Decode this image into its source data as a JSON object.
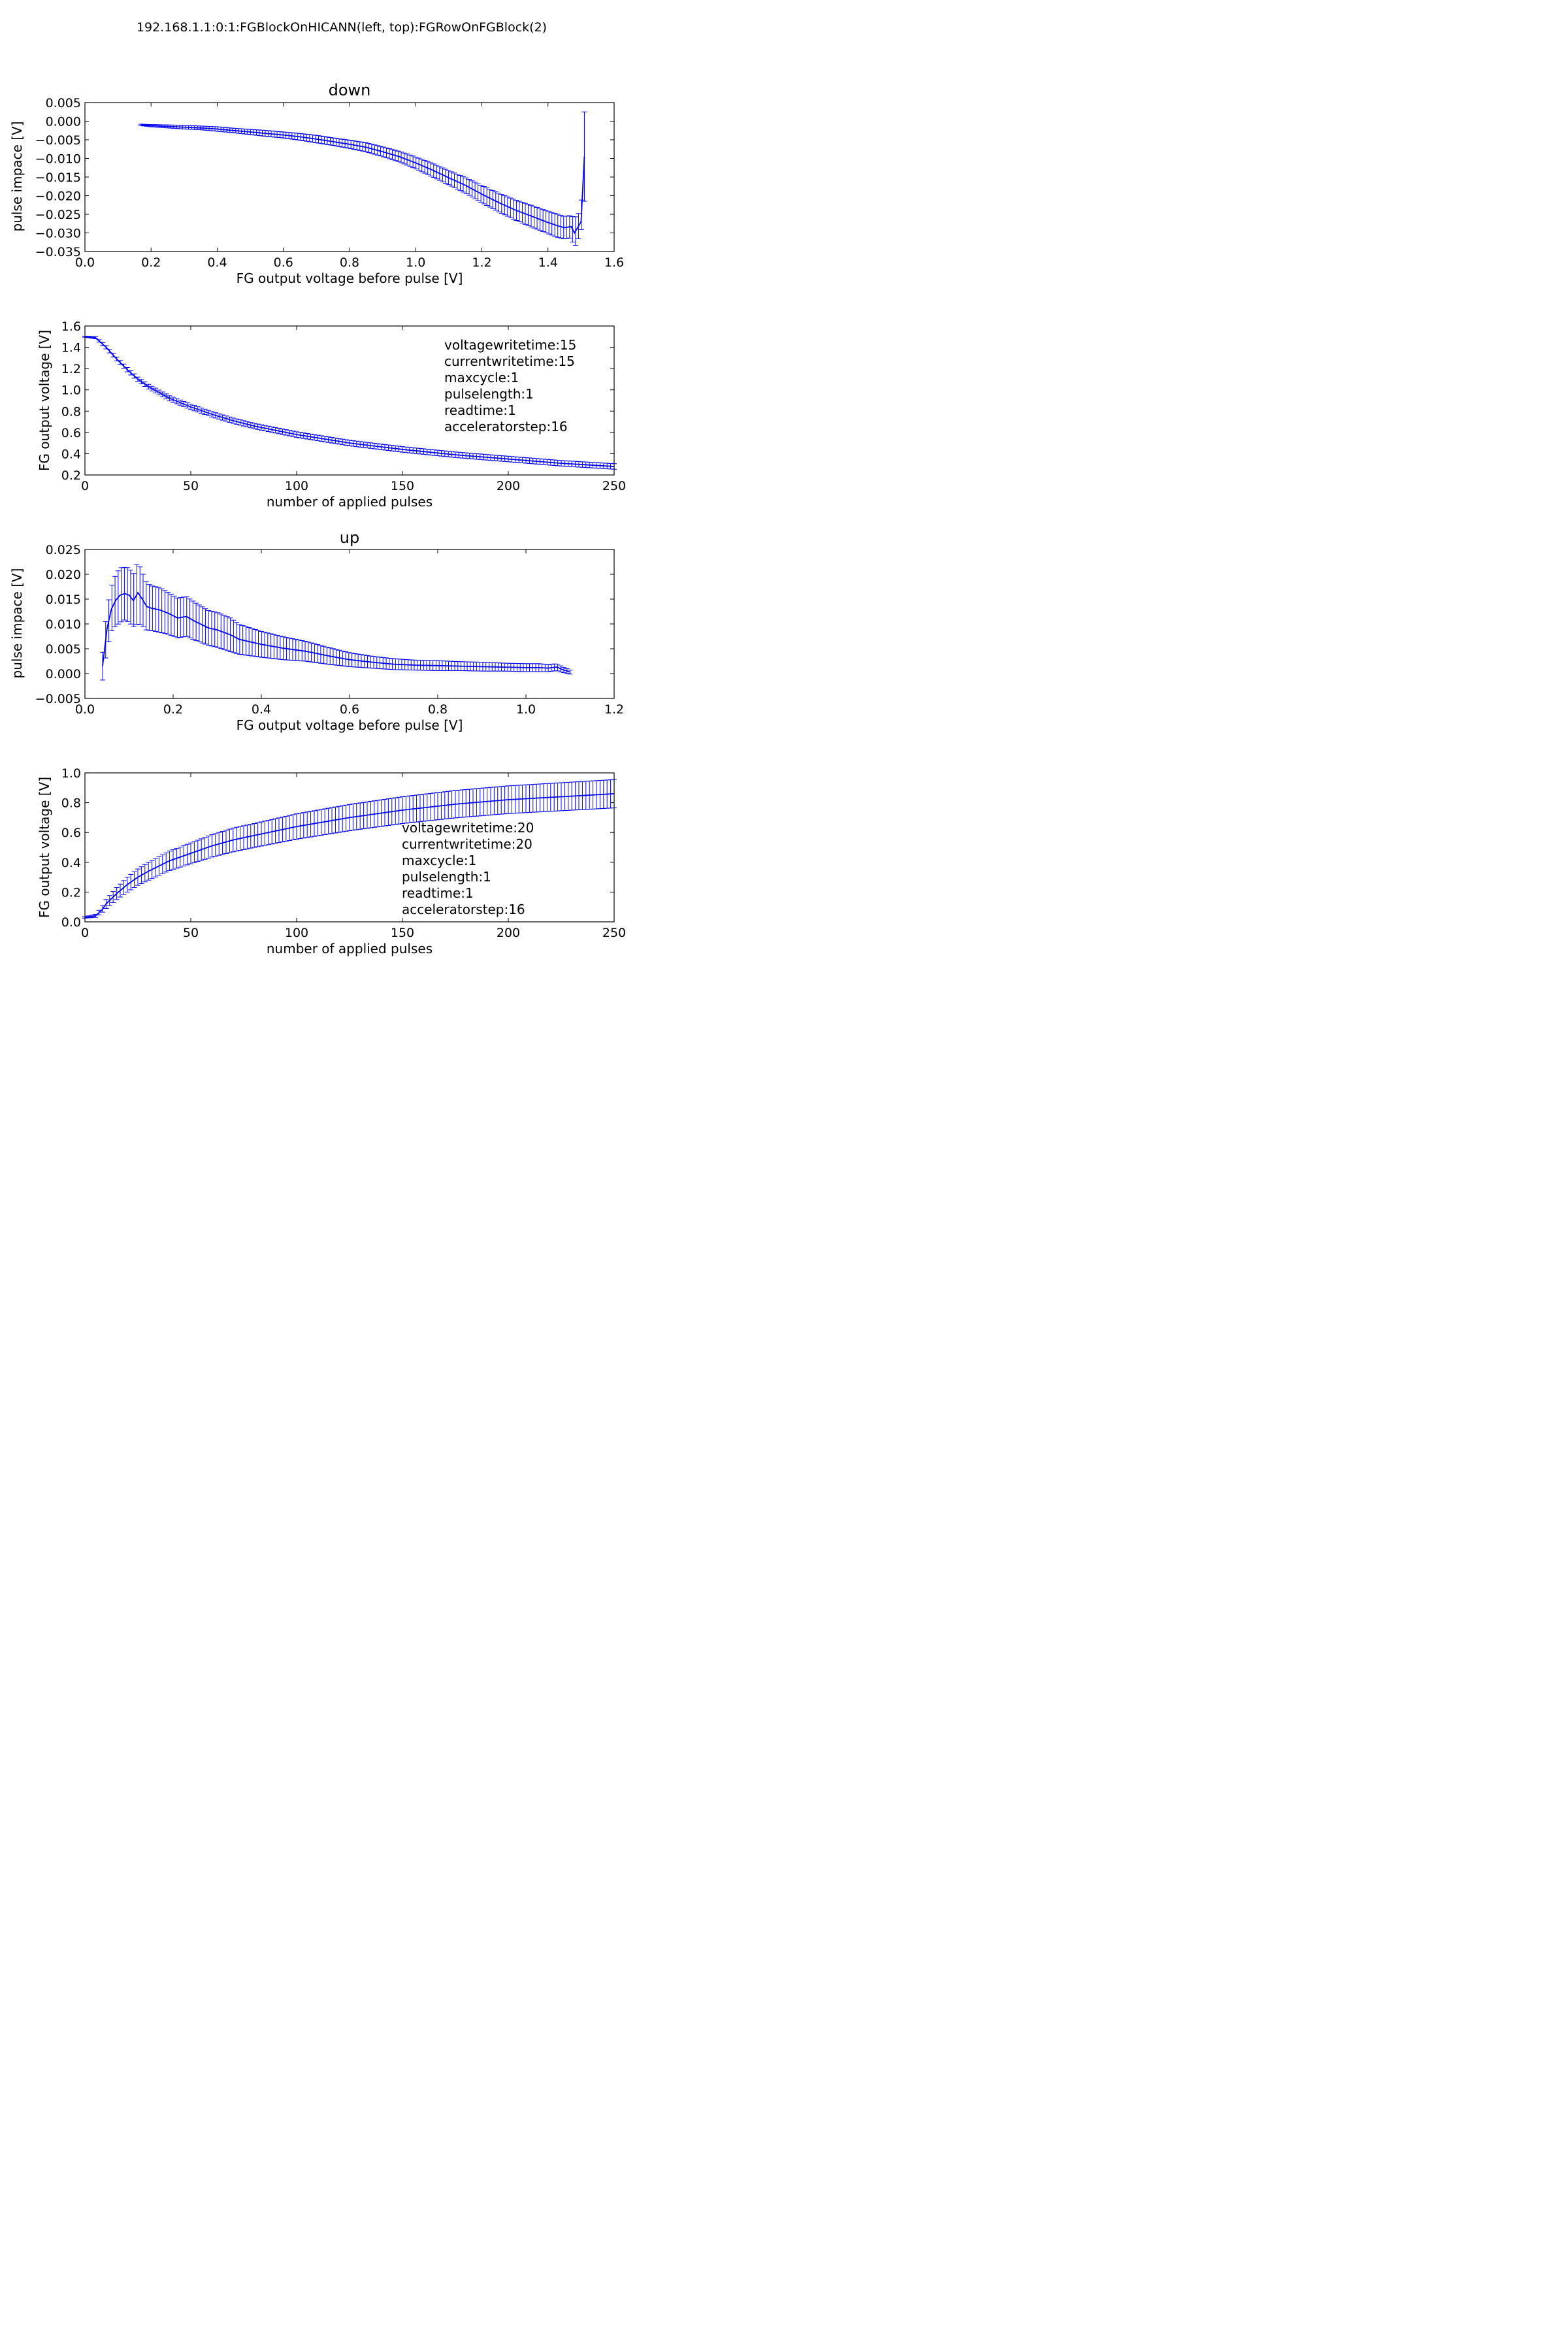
{
  "suptitle": "192.168.1.1:0:1:FGBlockOnHICANN(left, top):FGRowOnFGBlock(2)",
  "colors": {
    "series": "#0000ff",
    "axes": "#000000",
    "background": "#ffffff"
  },
  "chart_data": [
    {
      "id": "down_impact",
      "type": "line",
      "title": "down",
      "xlabel": "FG output voltage before pulse [V]",
      "ylabel": "pulse impace [V]",
      "xlim": [
        0.0,
        1.6
      ],
      "ylim": [
        -0.035,
        0.005
      ],
      "xticks": [
        "0.0",
        "0.2",
        "0.4",
        "0.6",
        "0.8",
        "1.0",
        "1.2",
        "1.4",
        "1.6"
      ],
      "yticks": [
        "0.005",
        "0.000",
        "−0.005",
        "−0.010",
        "−0.015",
        "−0.020",
        "−0.025",
        "−0.030",
        "−0.035"
      ],
      "error_bars": true,
      "series": [
        {
          "x": [
            0.17,
            0.2,
            0.25,
            0.3,
            0.35,
            0.4,
            0.45,
            0.5,
            0.55,
            0.6,
            0.65,
            0.7,
            0.75,
            0.8,
            0.85,
            0.9,
            0.95,
            1.0,
            1.05,
            1.1,
            1.15,
            1.2,
            1.25,
            1.3,
            1.35,
            1.4,
            1.43,
            1.45,
            1.47,
            1.48,
            1.5,
            1.51
          ],
          "y": [
            -0.001,
            -0.0012,
            -0.0014,
            -0.0016,
            -0.0018,
            -0.0021,
            -0.0025,
            -0.0029,
            -0.0033,
            -0.0037,
            -0.0042,
            -0.0048,
            -0.0055,
            -0.0062,
            -0.007,
            -0.0082,
            -0.0095,
            -0.0112,
            -0.0131,
            -0.0152,
            -0.0172,
            -0.0196,
            -0.0218,
            -0.0238,
            -0.0255,
            -0.0272,
            -0.0281,
            -0.0286,
            -0.0283,
            -0.03,
            -0.027,
            -0.0095
          ],
          "err": [
            0.0002,
            0.0003,
            0.0004,
            0.0005,
            0.0005,
            0.0006,
            0.0006,
            0.0007,
            0.0008,
            0.0008,
            0.0009,
            0.001,
            0.001,
            0.0011,
            0.0012,
            0.0013,
            0.0014,
            0.0016,
            0.0018,
            0.0019,
            0.0021,
            0.0023,
            0.0025,
            0.0027,
            0.0029,
            0.003,
            0.0031,
            0.003,
            0.003,
            0.004,
            0.003,
            0.012
          ]
        }
      ]
    },
    {
      "id": "down_trace",
      "type": "line",
      "title": "",
      "xlabel": "number of applied pulses",
      "ylabel": "FG output voltage [V]",
      "xlim": [
        0,
        250
      ],
      "ylim": [
        0.2,
        1.6
      ],
      "xticks": [
        "0",
        "50",
        "100",
        "150",
        "200",
        "250"
      ],
      "yticks": [
        "1.6",
        "1.4",
        "1.2",
        "1.0",
        "0.8",
        "0.6",
        "0.4",
        "0.2"
      ],
      "error_bars": true,
      "annotation": [
        "voltagewritetime:15",
        "currentwritetime:15",
        "maxcycle:1",
        "pulselength:1",
        "readtime:1",
        "acceleratorstep:16"
      ],
      "series": [
        {
          "x": [
            0,
            5,
            10,
            15,
            20,
            25,
            30,
            40,
            50,
            60,
            70,
            80,
            100,
            125,
            150,
            175,
            200,
            225,
            250
          ],
          "y": [
            1.5,
            1.49,
            1.4,
            1.29,
            1.19,
            1.1,
            1.03,
            0.92,
            0.84,
            0.77,
            0.71,
            0.66,
            0.58,
            0.5,
            0.44,
            0.39,
            0.35,
            0.31,
            0.28
          ],
          "err": [
            0.005,
            0.01,
            0.015,
            0.018,
            0.02,
            0.02,
            0.022,
            0.024,
            0.025,
            0.025,
            0.025,
            0.025,
            0.026,
            0.026,
            0.026,
            0.026,
            0.026,
            0.026,
            0.026
          ]
        }
      ]
    },
    {
      "id": "up_impact",
      "type": "line",
      "title": "up",
      "xlabel": "FG output voltage before pulse [V]",
      "ylabel": "pulse impace [V]",
      "xlim": [
        0.0,
        1.2
      ],
      "ylim": [
        -0.005,
        0.025
      ],
      "xticks": [
        "0.0",
        "0.2",
        "0.4",
        "0.6",
        "0.8",
        "1.0",
        "1.2"
      ],
      "yticks": [
        "0.025",
        "0.020",
        "0.015",
        "0.010",
        "0.005",
        "0.000",
        "−0.005"
      ],
      "error_bars": true,
      "series": [
        {
          "x": [
            0.04,
            0.05,
            0.06,
            0.07,
            0.08,
            0.09,
            0.1,
            0.11,
            0.12,
            0.13,
            0.14,
            0.15,
            0.17,
            0.19,
            0.21,
            0.23,
            0.25,
            0.28,
            0.3,
            0.33,
            0.35,
            0.4,
            0.45,
            0.5,
            0.55,
            0.6,
            0.65,
            0.7,
            0.75,
            0.8,
            0.85,
            0.9,
            0.95,
            1.0,
            1.03,
            1.05,
            1.07,
            1.08,
            1.1
          ],
          "y": [
            0.0015,
            0.009,
            0.013,
            0.0148,
            0.0158,
            0.0161,
            0.0158,
            0.0147,
            0.0163,
            0.015,
            0.0135,
            0.0132,
            0.0128,
            0.0121,
            0.0112,
            0.0115,
            0.0105,
            0.0092,
            0.0088,
            0.0078,
            0.0069,
            0.0059,
            0.0051,
            0.0045,
            0.0036,
            0.0028,
            0.0023,
            0.0019,
            0.0017,
            0.0016,
            0.0015,
            0.0014,
            0.0013,
            0.0012,
            0.0012,
            0.0011,
            0.0013,
            0.0009,
            0.0003
          ],
          "err": [
            0.0028,
            0.004,
            0.0045,
            0.0052,
            0.0055,
            0.0053,
            0.0055,
            0.0053,
            0.0062,
            0.0054,
            0.0048,
            0.0045,
            0.0045,
            0.0042,
            0.004,
            0.004,
            0.0038,
            0.0035,
            0.0035,
            0.0034,
            0.003,
            0.0026,
            0.0023,
            0.002,
            0.0017,
            0.0014,
            0.0012,
            0.0011,
            0.001,
            0.001,
            0.0009,
            0.0009,
            0.0008,
            0.0008,
            0.0008,
            0.0007,
            0.0007,
            0.0006,
            0.0004
          ]
        }
      ]
    },
    {
      "id": "up_trace",
      "type": "line",
      "title": "",
      "xlabel": "number of applied pulses",
      "ylabel": "FG output voltage [V]",
      "xlim": [
        0,
        250
      ],
      "ylim": [
        0.0,
        1.0
      ],
      "xticks": [
        "0",
        "50",
        "100",
        "150",
        "200",
        "250"
      ],
      "yticks": [
        "1.0",
        "0.8",
        "0.6",
        "0.4",
        "0.2",
        "0.0"
      ],
      "error_bars": true,
      "annotation": [
        "voltagewritetime:20",
        "currentwritetime:20",
        "maxcycle:1",
        "pulselength:1",
        "readtime:1",
        "acceleratorstep:16"
      ],
      "series": [
        {
          "x": [
            0,
            5,
            8,
            10,
            15,
            20,
            25,
            30,
            40,
            50,
            60,
            70,
            80,
            100,
            125,
            150,
            175,
            200,
            225,
            250
          ],
          "y": [
            0.03,
            0.04,
            0.08,
            0.12,
            0.19,
            0.25,
            0.3,
            0.34,
            0.41,
            0.46,
            0.51,
            0.55,
            0.58,
            0.64,
            0.7,
            0.75,
            0.79,
            0.82,
            0.84,
            0.86
          ],
          "err": [
            0.005,
            0.01,
            0.02,
            0.03,
            0.04,
            0.05,
            0.055,
            0.06,
            0.065,
            0.07,
            0.075,
            0.08,
            0.08,
            0.085,
            0.088,
            0.09,
            0.092,
            0.093,
            0.094,
            0.095
          ]
        }
      ]
    }
  ]
}
